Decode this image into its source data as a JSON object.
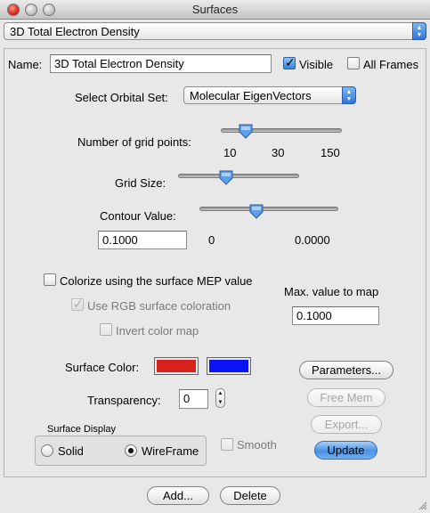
{
  "window": {
    "title": "Surfaces"
  },
  "surface_selector": {
    "value": "3D Total Electron Density"
  },
  "name": {
    "label": "Name:",
    "value": "3D Total Electron Density"
  },
  "visible": {
    "label": "Visible",
    "checked": true
  },
  "all_frames": {
    "label": "All Frames",
    "checked": false
  },
  "orbital_set": {
    "label": "Select Orbital Set:",
    "value": "Molecular EigenVectors"
  },
  "grid_points": {
    "label": "Number of grid points:",
    "ticks": [
      "10",
      "30",
      "150"
    ],
    "level": 0.25
  },
  "grid_size": {
    "label": "Grid Size:",
    "level": 0.4
  },
  "contour": {
    "label": "Contour Value:",
    "value": "0.1000",
    "min_label": "0",
    "max_label": "0.0000",
    "level": 0.4
  },
  "colorize": {
    "label": "Colorize using the surface MEP value",
    "checked": false
  },
  "rgb": {
    "label": "Use RGB surface coloration",
    "checked": true,
    "enabled": false
  },
  "invert": {
    "label": "Invert color map",
    "checked": false,
    "enabled": false
  },
  "max_value": {
    "label": "Max. value to map",
    "value": "0.1000"
  },
  "surface_color": {
    "label": "Surface Color:",
    "color1": "#d8221c",
    "color2": "#0a14f5"
  },
  "transparency": {
    "label": "Transparency:",
    "value": "0"
  },
  "display": {
    "group_label": "Surface Display",
    "solid_label": "Solid",
    "wireframe_label": "WireFrame",
    "selected": "WireFrame",
    "smooth_label": "Smooth",
    "smooth_checked": false
  },
  "buttons": {
    "parameters": "Parameters...",
    "free_mem": "Free Mem",
    "export": "Export...",
    "update": "Update",
    "add": "Add...",
    "delete": "Delete"
  }
}
